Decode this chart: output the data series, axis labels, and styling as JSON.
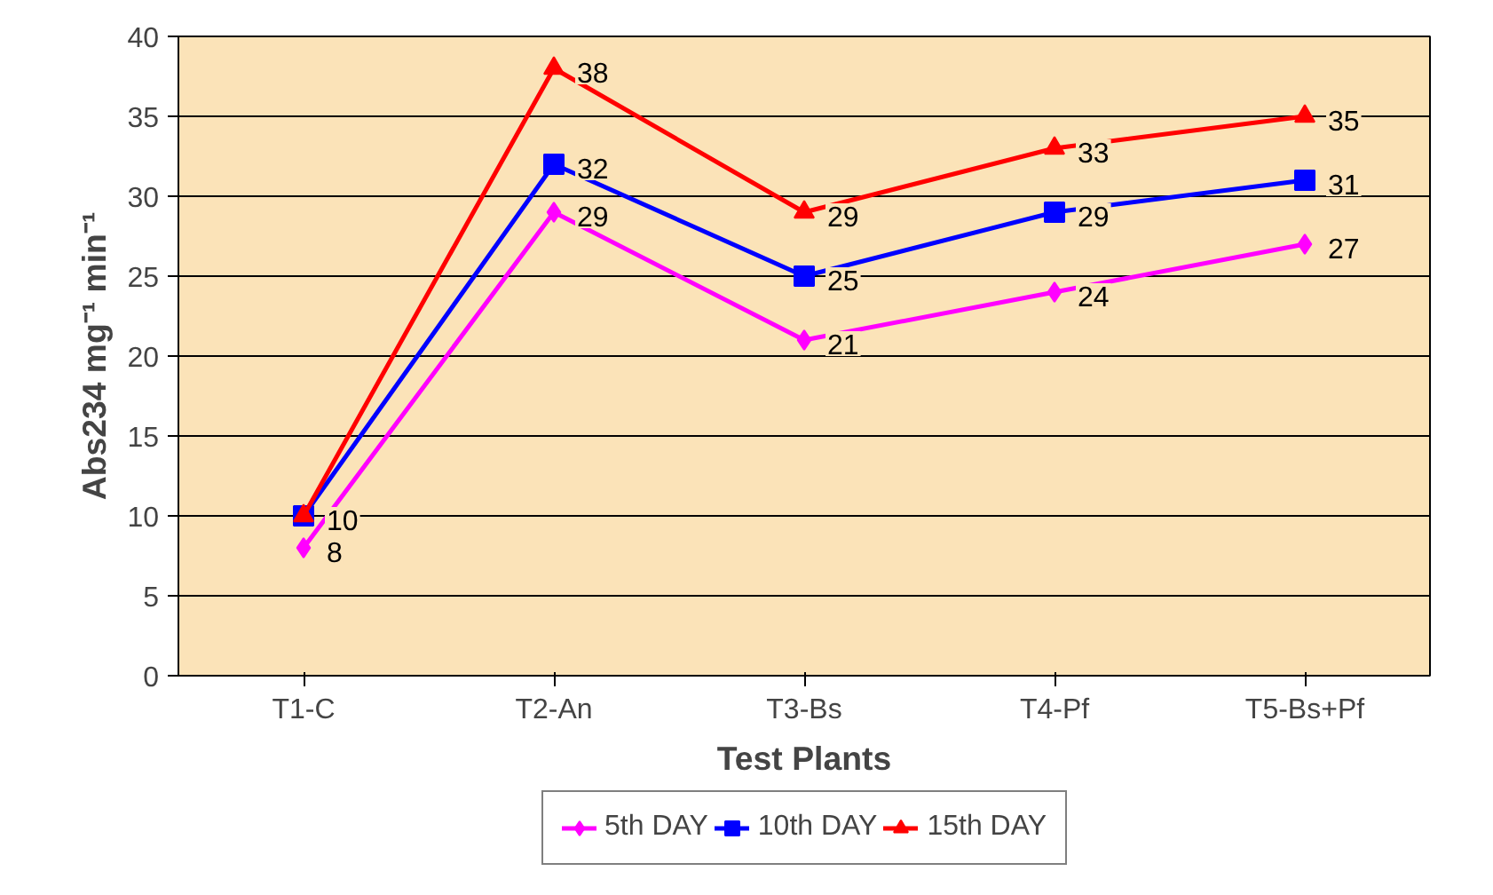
{
  "chart_data": {
    "type": "line",
    "xlabel": "Test Plants",
    "ylabel": "Abs234 mg⁻¹ min⁻¹",
    "categories": [
      "T1-C",
      "T2-An",
      "T3-Bs",
      "T4-Pf",
      "T5-Bs+Pf"
    ],
    "series": [
      {
        "name": "5th DAY",
        "color": "#ff00ff",
        "marker": "diamond",
        "values": [
          8,
          29,
          21,
          24,
          27
        ],
        "value_labels": [
          "8",
          "29",
          "21",
          "24",
          "27"
        ]
      },
      {
        "name": "10th DAY",
        "color": "#0000ff",
        "marker": "square",
        "values": [
          10,
          32,
          25,
          29,
          31
        ],
        "value_labels": [
          "10",
          "32",
          "25",
          "29",
          "31"
        ]
      },
      {
        "name": "15th DAY",
        "color": "#ff0000",
        "marker": "triangle",
        "values": [
          10,
          38,
          29,
          33,
          35
        ],
        "value_labels": [
          null,
          "38",
          "29",
          "33",
          "35"
        ]
      }
    ],
    "ylim": [
      0,
      40
    ],
    "yticks": [
      0,
      5,
      10,
      15,
      20,
      25,
      30,
      35,
      40
    ],
    "grid": "y",
    "legend": "bottom"
  }
}
